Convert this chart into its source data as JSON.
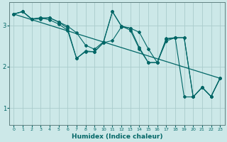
{
  "xlabel": "Humidex (Indice chaleur)",
  "bg_color": "#cce8e8",
  "grid_color": "#aacccc",
  "line_color": "#006666",
  "xlim": [
    -0.5,
    23.5
  ],
  "ylim": [
    0.6,
    3.55
  ],
  "yticks": [
    1,
    2,
    3
  ],
  "xticks": [
    0,
    1,
    2,
    3,
    4,
    5,
    6,
    7,
    8,
    9,
    10,
    11,
    12,
    13,
    14,
    15,
    16,
    17,
    18,
    19,
    20,
    21,
    22,
    23
  ],
  "series": [
    {
      "x": [
        0,
        1,
        2,
        3,
        4,
        5,
        6,
        7,
        8,
        9,
        10,
        11,
        12,
        13,
        14,
        15,
        16,
        17,
        18,
        19,
        20,
        21,
        22,
        23
      ],
      "y": [
        3.27,
        3.33,
        3.15,
        3.15,
        3.18,
        3.08,
        2.98,
        2.82,
        2.52,
        2.42,
        2.6,
        3.33,
        2.98,
        2.93,
        2.83,
        2.43,
        2.1,
        2.62,
        2.7,
        2.7,
        1.27,
        1.5,
        1.28,
        1.72
      ]
    },
    {
      "x": [
        0,
        1,
        2,
        3,
        4,
        5,
        6,
        7,
        8,
        9,
        10,
        11,
        12,
        13,
        14,
        15,
        16,
        17,
        18,
        19,
        20,
        21,
        22,
        23
      ],
      "y": [
        3.27,
        3.33,
        3.15,
        3.18,
        3.13,
        3.03,
        2.88,
        2.2,
        2.38,
        2.36,
        2.58,
        2.63,
        2.96,
        2.93,
        2.46,
        2.1,
        2.1,
        2.68,
        2.7,
        2.7,
        1.27,
        1.5,
        1.28,
        1.72
      ]
    },
    {
      "x": [
        0,
        1,
        2,
        3,
        4,
        5,
        6,
        7,
        8,
        9,
        10,
        11,
        12,
        13,
        14,
        15,
        16,
        17,
        18,
        19,
        20,
        21,
        22,
        23
      ],
      "y": [
        3.27,
        3.33,
        3.15,
        3.18,
        3.18,
        3.08,
        2.93,
        2.2,
        2.36,
        2.36,
        2.58,
        3.33,
        2.98,
        2.88,
        2.43,
        2.1,
        2.1,
        2.66,
        2.7,
        1.27,
        1.27,
        1.5,
        1.28,
        1.72
      ]
    },
    {
      "x": [
        0,
        23
      ],
      "y": [
        3.27,
        1.72
      ]
    }
  ]
}
